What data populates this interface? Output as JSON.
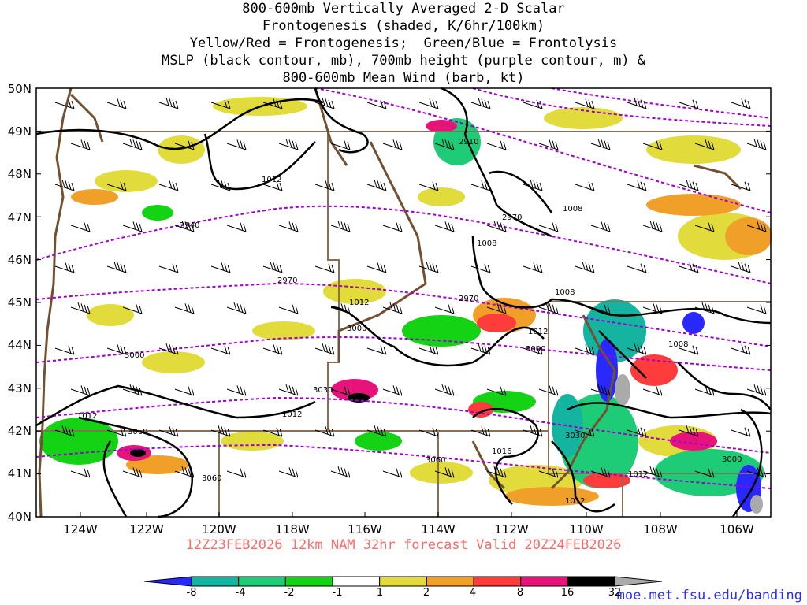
{
  "title_lines": [
    "800-600mb Vertically Averaged 2-D Scalar",
    "Frontogenesis (shaded, K/6hr/100km)",
    "Yellow/Red = Frontogenesis;  Green/Blue = Frontolysis",
    "MSLP (black contour, mb), 700mb height (purple contour, m) &",
    "800-600mb Mean Wind (barb, kt)"
  ],
  "lat_labels": [
    "50N",
    "49N",
    "48N",
    "47N",
    "46N",
    "45N",
    "44N",
    "43N",
    "42N",
    "41N",
    "40N"
  ],
  "lon_labels": [
    "124W",
    "122W",
    "120W",
    "118W",
    "116W",
    "114W",
    "112W",
    "110W",
    "108W",
    "106W"
  ],
  "height_contour_labels": [
    "2910",
    "2940",
    "2970",
    "2970",
    "3000",
    "3000",
    "3000",
    "3030",
    "3030",
    "3060",
    "3060",
    "3060",
    "2970",
    "3000"
  ],
  "mslp_contour_labels": [
    "1012",
    "1008",
    "1008",
    "1008",
    "1012",
    "1012",
    "1012",
    "1008",
    "1016",
    "1012",
    "1012",
    "1012"
  ],
  "forecast_text": "12Z23FEB2026 12km NAM 32hr forecast Valid 20Z24FEB2026",
  "credit": "moe.met.fsu.edu/banding",
  "colorbar": {
    "labels": [
      "-8",
      "-4",
      "-2",
      "-1",
      "1",
      "2",
      "4",
      "8",
      "16",
      "32"
    ],
    "colors": [
      "#2828ff",
      "#14b4a0",
      "#1ecc78",
      "#14d214",
      "#ffffff",
      "#e1dc3c",
      "#f0a028",
      "#ff3c3c",
      "#e6147a",
      "#000000",
      "#aaaaaa"
    ]
  },
  "colors": {
    "mslp": "#000000",
    "height": "#a000d2",
    "border": "#735032",
    "grid": "#8c6e55"
  }
}
